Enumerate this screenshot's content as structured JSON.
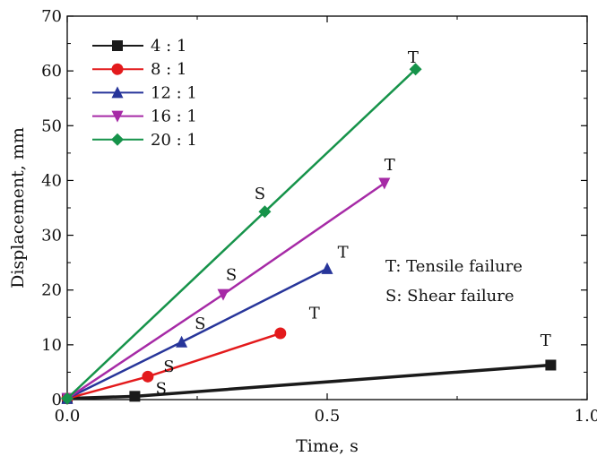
{
  "chart_data": {
    "type": "line",
    "xlabel": "Time, s",
    "ylabel": "Displacement, mm",
    "xlim": [
      0,
      1.0
    ],
    "ylim": [
      0,
      70
    ],
    "xticks": [
      0,
      0.5,
      1.0
    ],
    "xtick_labels": [
      "0.0",
      "0.5",
      "1.0"
    ],
    "yticks": [
      0,
      10,
      20,
      30,
      40,
      50,
      60,
      70
    ],
    "ytick_labels": [
      "0",
      "10",
      "20",
      "30",
      "40",
      "50",
      "60",
      "70"
    ],
    "grid": false,
    "legend_position": "top-left",
    "series": [
      {
        "name": "4 : 1",
        "color": "#1a1a1a",
        "marker": "square",
        "x": [
          0.0,
          0.13,
          0.93
        ],
        "y": [
          0.2,
          0.6,
          6.3
        ]
      },
      {
        "name": "8 : 1",
        "color": "#e31a1c",
        "marker": "circle",
        "x": [
          0.0,
          0.155,
          0.41
        ],
        "y": [
          0.2,
          4.2,
          12.1
        ]
      },
      {
        "name": "12 : 1",
        "color": "#27359a",
        "marker": "triangle-up",
        "x": [
          0.0,
          0.22,
          0.5
        ],
        "y": [
          0.2,
          10.5,
          23.9
        ]
      },
      {
        "name": "16 : 1",
        "color": "#a62aa6",
        "marker": "triangle-down",
        "x": [
          0.0,
          0.3,
          0.61
        ],
        "y": [
          0.2,
          19.2,
          39.5
        ]
      },
      {
        "name": "20 : 1",
        "color": "#16934a",
        "marker": "diamond",
        "x": [
          0.0,
          0.38,
          0.67
        ],
        "y": [
          0.2,
          34.3,
          60.3
        ]
      }
    ],
    "annotations": [
      {
        "text": "T",
        "x": 0.91,
        "y": 9.8
      },
      {
        "text": "S",
        "x": 0.17,
        "y": 1.1
      },
      {
        "text": "T",
        "x": 0.465,
        "y": 14.8
      },
      {
        "text": "S",
        "x": 0.185,
        "y": 5.1
      },
      {
        "text": "T",
        "x": 0.52,
        "y": 25.9
      },
      {
        "text": "S",
        "x": 0.245,
        "y": 12.9
      },
      {
        "text": "T",
        "x": 0.61,
        "y": 41.9
      },
      {
        "text": "S",
        "x": 0.305,
        "y": 21.8
      },
      {
        "text": "T",
        "x": 0.655,
        "y": 61.5
      },
      {
        "text": "S",
        "x": 0.36,
        "y": 36.6
      }
    ],
    "failure_legend": [
      {
        "text": "T: Tensile failure"
      },
      {
        "text": "S: Shear failure"
      }
    ]
  }
}
